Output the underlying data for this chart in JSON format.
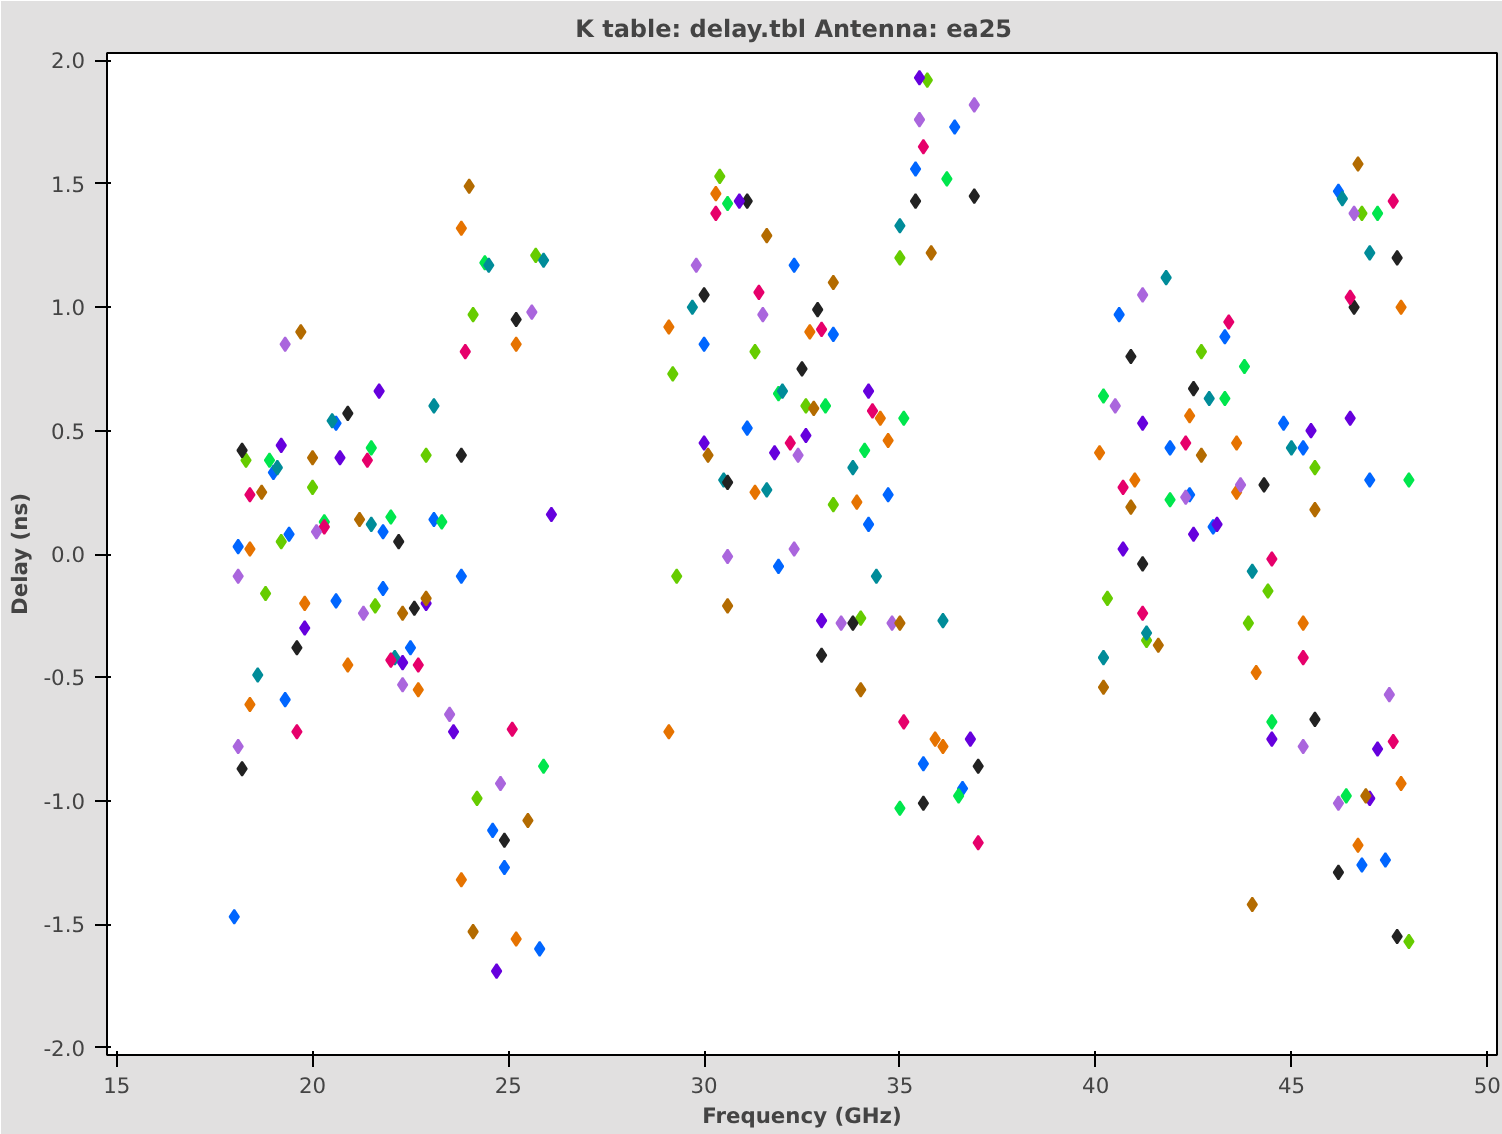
{
  "chart_data": {
    "type": "scatter",
    "title": "K table: delay.tbl   Antenna: ea25",
    "xlabel": "Frequency (GHz)",
    "ylabel": "Delay (ns)",
    "xlim": [
      14.75,
      50.25
    ],
    "ylim": [
      -2.03,
      2.03
    ],
    "xticks": [
      15,
      20,
      25,
      30,
      35,
      40,
      45,
      50
    ],
    "yticks": [
      {
        "value": -2,
        "label": "-2.0"
      },
      {
        "value": -1.5,
        "label": "-1.5"
      },
      {
        "value": -1,
        "label": "-1.0"
      },
      {
        "value": -0.5,
        "label": "-0.5"
      },
      {
        "value": 0,
        "label": "0.0"
      },
      {
        "value": 0.5,
        "label": "0.5"
      },
      {
        "value": 1,
        "label": "1.0"
      },
      {
        "value": 1.5,
        "label": "1.5"
      },
      {
        "value": 2,
        "label": "2.0"
      }
    ],
    "marker": "diamond",
    "grid": false,
    "series": [
      {
        "color": "#0066ff",
        "x": [
          18.0,
          18.1,
          19.0,
          19.3,
          19.4,
          20.6,
          20.6,
          21.8,
          21.8,
          22.5,
          23.1,
          23.8,
          24.6,
          24.9,
          25.8,
          30.0,
          31.1,
          31.9,
          32.3,
          33.3,
          34.2,
          34.7,
          35.4,
          35.6,
          36.4,
          36.6,
          40.6,
          41.9,
          42.4,
          43.0,
          43.3,
          44.8,
          45.3,
          46.2,
          46.8,
          47.4,
          47.0
        ],
        "values": [
          -1.47,
          0.03,
          0.33,
          -0.59,
          0.08,
          0.53,
          -0.19,
          -0.14,
          0.09,
          -0.38,
          0.14,
          -0.09,
          -1.12,
          -1.27,
          -1.6,
          0.85,
          0.51,
          -0.05,
          1.17,
          0.89,
          0.12,
          0.24,
          1.56,
          -0.85,
          1.73,
          -0.95,
          0.97,
          0.43,
          0.24,
          0.11,
          0.88,
          0.53,
          0.43,
          1.47,
          -1.26,
          -1.24,
          0.3
        ]
      },
      {
        "color": "#e67300",
        "x": [
          18.4,
          18.4,
          19.8,
          20.9,
          22.7,
          23.8,
          23.8,
          25.2,
          25.2,
          29.1,
          29.1,
          30.3,
          31.3,
          32.7,
          33.9,
          34.5,
          34.7,
          35.9,
          36.1,
          40.1,
          41.0,
          42.4,
          43.6,
          44.1,
          46.7,
          47.8,
          47.8,
          45.3,
          43.6
        ],
        "values": [
          0.02,
          -0.61,
          -0.2,
          -0.45,
          -0.55,
          1.32,
          -1.32,
          0.85,
          -1.56,
          0.92,
          -0.72,
          1.46,
          0.25,
          0.9,
          0.21,
          0.55,
          0.46,
          -0.75,
          -0.78,
          0.41,
          0.3,
          0.56,
          0.45,
          -0.48,
          -1.18,
          -0.93,
          1.0,
          -0.28,
          0.25
        ]
      },
      {
        "color": "#00e64d",
        "x": [
          18.9,
          20.3,
          21.5,
          22.0,
          23.3,
          24.4,
          25.9,
          30.6,
          31.9,
          33.1,
          34.1,
          35.0,
          35.1,
          36.2,
          36.5,
          40.2,
          41.9,
          43.3,
          43.8,
          44.5,
          46.4,
          47.2,
          48.0
        ],
        "values": [
          0.38,
          0.13,
          0.43,
          0.15,
          0.13,
          1.18,
          -0.86,
          1.42,
          0.65,
          0.6,
          0.42,
          -1.03,
          0.55,
          1.52,
          -0.98,
          0.64,
          0.22,
          0.63,
          0.76,
          -0.68,
          -0.98,
          1.38,
          0.3
        ]
      },
      {
        "color": "#66cc00",
        "x": [
          18.3,
          18.8,
          19.2,
          20.0,
          21.6,
          22.9,
          24.1,
          24.2,
          25.7,
          29.2,
          29.3,
          30.4,
          31.3,
          32.6,
          33.3,
          34.0,
          35.0,
          35.7,
          40.3,
          41.3,
          42.7,
          43.9,
          44.4,
          45.6,
          46.8,
          48.0
        ],
        "values": [
          0.38,
          -0.16,
          0.05,
          0.27,
          -0.21,
          0.4,
          0.97,
          -0.99,
          1.21,
          0.73,
          -0.09,
          1.53,
          0.82,
          0.6,
          0.2,
          -0.26,
          1.2,
          1.92,
          -0.18,
          -0.35,
          0.82,
          -0.28,
          -0.15,
          0.35,
          1.38,
          -1.57
        ]
      },
      {
        "color": "#008c99",
        "x": [
          18.6,
          19.1,
          20.5,
          21.5,
          22.1,
          23.1,
          24.5,
          25.9,
          29.7,
          30.5,
          31.6,
          32.0,
          33.8,
          34.4,
          35.0,
          36.1,
          40.2,
          41.3,
          41.8,
          42.9,
          44.0,
          45.0,
          46.3,
          47.0
        ],
        "values": [
          -0.49,
          0.35,
          0.54,
          0.12,
          -0.42,
          0.6,
          1.17,
          1.19,
          1.0,
          0.3,
          0.26,
          0.66,
          0.35,
          -0.09,
          1.33,
          -0.27,
          -0.42,
          -0.32,
          1.12,
          0.63,
          -0.07,
          0.43,
          1.44,
          1.22
        ]
      },
      {
        "color": "#222222",
        "x": [
          18.2,
          18.2,
          19.6,
          20.9,
          22.2,
          22.6,
          23.8,
          24.9,
          25.2,
          30.0,
          30.6,
          31.1,
          32.5,
          32.9,
          33.0,
          33.8,
          35.4,
          35.6,
          36.9,
          37.0,
          40.9,
          41.2,
          42.5,
          44.3,
          45.6,
          46.2,
          46.6,
          47.7,
          47.7
        ],
        "values": [
          0.42,
          -0.87,
          -0.38,
          0.57,
          0.05,
          -0.22,
          0.4,
          -1.16,
          0.95,
          1.05,
          0.29,
          1.43,
          0.75,
          0.99,
          -0.41,
          -0.28,
          1.43,
          -1.01,
          1.45,
          -0.86,
          0.8,
          -0.04,
          0.67,
          0.28,
          -0.67,
          -1.29,
          1.0,
          1.2,
          -1.55
        ]
      },
      {
        "color": "#e6006b",
        "x": [
          18.4,
          19.6,
          20.3,
          21.4,
          22.0,
          22.7,
          23.9,
          25.1,
          30.3,
          31.4,
          32.2,
          33.0,
          34.3,
          35.1,
          35.6,
          37.0,
          40.7,
          41.2,
          42.3,
          43.4,
          44.5,
          45.3,
          46.5,
          47.6,
          47.6
        ],
        "values": [
          0.24,
          -0.72,
          0.11,
          0.38,
          -0.43,
          -0.45,
          0.82,
          -0.71,
          1.38,
          1.06,
          0.45,
          0.91,
          0.58,
          -0.68,
          1.65,
          -1.17,
          0.27,
          -0.24,
          0.45,
          0.94,
          -0.02,
          -0.42,
          1.04,
          1.43,
          -0.76
        ]
      },
      {
        "color": "#6600dd",
        "x": [
          19.2,
          19.8,
          20.7,
          21.7,
          22.3,
          22.9,
          23.6,
          24.7,
          26.1,
          30.0,
          30.9,
          31.8,
          32.6,
          33.0,
          34.2,
          35.5,
          36.8,
          40.7,
          41.2,
          42.5,
          43.1,
          44.5,
          45.5,
          46.5,
          47.0,
          47.2
        ],
        "values": [
          0.44,
          -0.3,
          0.39,
          0.66,
          -0.44,
          -0.2,
          -0.72,
          -1.69,
          0.16,
          0.45,
          1.43,
          0.41,
          0.48,
          -0.27,
          0.66,
          1.93,
          -0.75,
          0.02,
          0.53,
          0.08,
          0.12,
          -0.75,
          0.5,
          0.55,
          -0.99,
          -0.79
        ]
      },
      {
        "color": "#aa66dd",
        "x": [
          18.1,
          18.1,
          19.3,
          20.1,
          21.3,
          22.3,
          23.5,
          24.8,
          25.6,
          29.8,
          30.6,
          31.5,
          32.3,
          32.4,
          33.5,
          34.8,
          35.5,
          36.9,
          40.5,
          41.2,
          42.3,
          43.7,
          45.3,
          46.2,
          46.6,
          47.5
        ],
        "values": [
          -0.09,
          -0.78,
          0.85,
          0.09,
          -0.24,
          -0.53,
          -0.65,
          -0.93,
          0.98,
          1.17,
          -0.01,
          0.97,
          0.02,
          0.4,
          -0.28,
          -0.28,
          1.76,
          1.82,
          0.6,
          1.05,
          0.23,
          0.28,
          -0.78,
          -1.01,
          1.38,
          -0.57
        ]
      },
      {
        "color": "#b36b00",
        "x": [
          18.7,
          19.7,
          20.0,
          21.2,
          22.3,
          22.9,
          24.0,
          24.1,
          25.5,
          30.1,
          30.6,
          31.6,
          32.8,
          33.3,
          34.0,
          35.0,
          35.8,
          40.2,
          40.9,
          41.6,
          42.7,
          44.0,
          45.6,
          46.7,
          46.9
        ],
        "values": [
          0.25,
          0.9,
          0.39,
          0.14,
          -0.24,
          -0.18,
          1.49,
          -1.53,
          -1.08,
          0.4,
          -0.21,
          1.29,
          0.59,
          1.1,
          -0.55,
          -0.28,
          1.22,
          -0.54,
          0.19,
          -0.37,
          0.4,
          -1.42,
          0.18,
          1.58,
          -0.98
        ]
      }
    ]
  }
}
